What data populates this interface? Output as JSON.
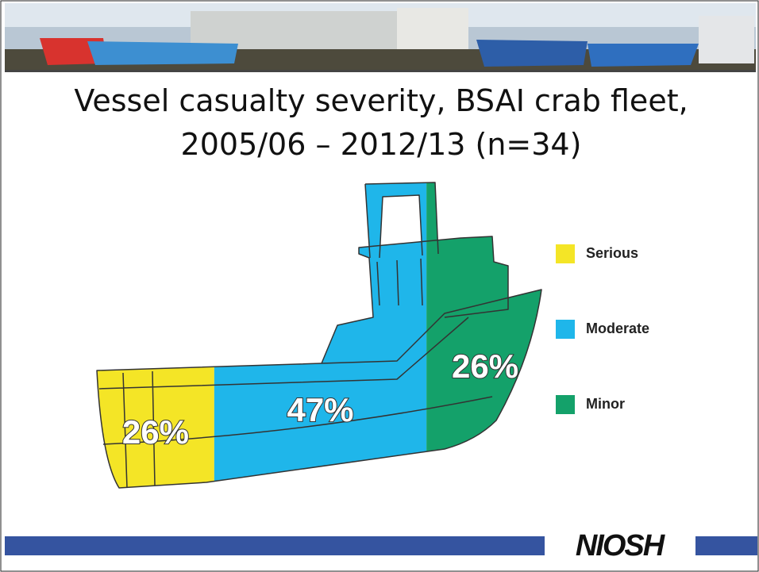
{
  "chart_data": {
    "type": "pictorial",
    "title": [
      "Vessel casualty severity, BSAI crab fleet,",
      "2005/06 – 2012/13 (n=34)"
    ],
    "categories": [
      "Serious",
      "Moderate",
      "Minor"
    ],
    "values": [
      26,
      47,
      26
    ],
    "value_labels": [
      "26%",
      "47%",
      "26%"
    ],
    "colors": [
      "#f4e526",
      "#1fb6ea",
      "#14a16a"
    ]
  },
  "footer": {
    "logo": "NIOSH"
  }
}
